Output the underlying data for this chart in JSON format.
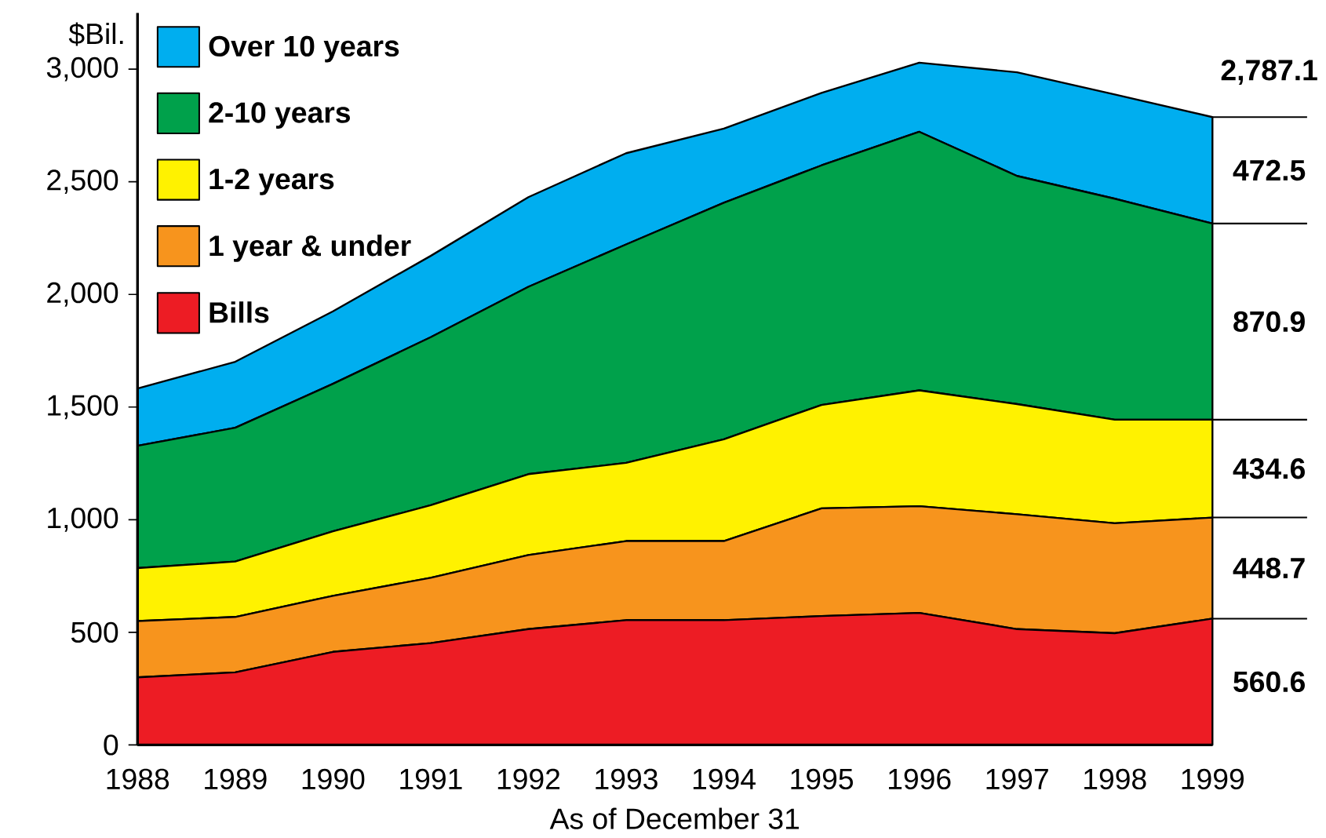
{
  "chart_data": {
    "type": "area",
    "stacked": true,
    "xlabel": "As of December 31",
    "ylabel": "$Bil.",
    "x": [
      1988,
      1989,
      1990,
      1991,
      1992,
      1993,
      1994,
      1995,
      1996,
      1997,
      1998,
      1999
    ],
    "series": [
      {
        "name": "Bills",
        "color": "#ed1c24",
        "values": [
          300,
          322,
          413,
          452,
          514,
          554,
          554,
          572,
          586,
          514,
          496,
          560.6
        ],
        "value_labels": [
          null,
          null,
          null,
          null,
          null,
          null,
          null,
          null,
          null,
          null,
          null,
          "560.6"
        ]
      },
      {
        "name": "1 year & under",
        "color": "#f7941d",
        "values": [
          250,
          246,
          249,
          290,
          329,
          351,
          351,
          478,
          474,
          510,
          488,
          448.7
        ],
        "value_labels": [
          null,
          null,
          null,
          null,
          null,
          null,
          null,
          null,
          null,
          null,
          null,
          "448.7"
        ]
      },
      {
        "name": "1-2 years",
        "color": "#fff200",
        "values": [
          235,
          246,
          286,
          322,
          359,
          347,
          452,
          459,
          514,
          489,
          460,
          434.6
        ],
        "value_labels": [
          null,
          null,
          null,
          null,
          null,
          null,
          null,
          null,
          null,
          null,
          null,
          "434.6"
        ]
      },
      {
        "name": "2-10 years",
        "color": "#00a14b",
        "values": [
          543,
          594,
          655,
          746,
          832,
          970,
          1050,
          1064,
          1148,
          1013,
          981,
          870.9
        ],
        "value_labels": [
          null,
          null,
          null,
          null,
          null,
          null,
          null,
          null,
          null,
          null,
          null,
          "870.9"
        ]
      },
      {
        "name": "Over 10 years",
        "color": "#00aeef",
        "values": [
          254,
          293,
          322,
          361,
          398,
          405,
          329,
          322,
          307,
          460,
          463,
          472.5
        ],
        "value_labels": [
          null,
          null,
          null,
          null,
          null,
          null,
          null,
          null,
          null,
          null,
          null,
          "472.5"
        ]
      }
    ],
    "totals": [
      null,
      null,
      null,
      null,
      null,
      null,
      null,
      null,
      null,
      null,
      null,
      "2,787.1"
    ],
    "xlim": [
      1988,
      1999
    ],
    "xticks": [
      1988,
      1989,
      1990,
      1991,
      1992,
      1993,
      1994,
      1995,
      1996,
      1997,
      1998,
      1999
    ],
    "ylim": [
      0,
      3250
    ],
    "yticks": [
      0,
      500,
      {
        "value": 1000,
        "label": "1,000"
      },
      {
        "value": 1500,
        "label": "1,500"
      },
      {
        "value": 2000,
        "label": "2,000"
      },
      {
        "value": 2500,
        "label": "2,500"
      },
      {
        "value": 3000,
        "label": "3,000"
      }
    ],
    "legend": "top left",
    "grid": false
  }
}
